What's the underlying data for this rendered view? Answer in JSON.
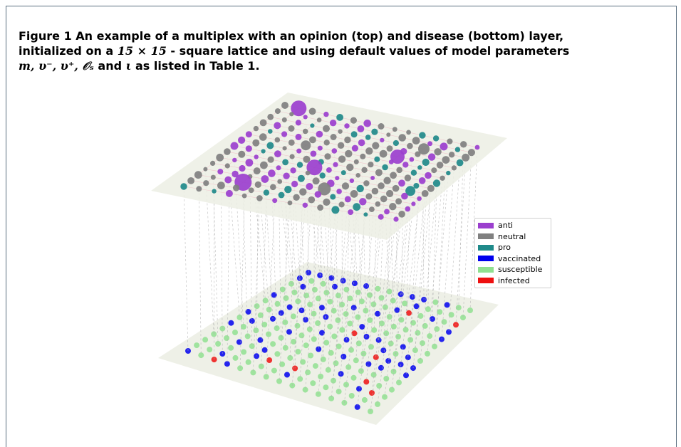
{
  "caption": {
    "line1": "Figure 1  An example of a multiplex with an opinion (top) and disease (bottom) layer,",
    "line2_text": "initialized on a ",
    "line2_math": "15 × 15",
    "line2_tail": " - square lattice and using default values of model parameters",
    "line3_math": "m, υ⁻, υ⁺, 𝒪ₛ",
    "line3_mid": " and ",
    "line3_iota": "ι",
    "line3_tail": " as listed in Table 1."
  },
  "legend": [
    {
      "label": "anti",
      "color": "#9b3fce"
    },
    {
      "label": "neutral",
      "color": "#808080"
    },
    {
      "label": "pro",
      "color": "#1f8a8a"
    },
    {
      "label": "vaccinated",
      "color": "#0000ee"
    },
    {
      "label": "susceptible",
      "color": "#90e090"
    },
    {
      "label": "infected",
      "color": "#ee1010"
    }
  ],
  "lattice": {
    "rows": 15,
    "cols": 15
  }
}
